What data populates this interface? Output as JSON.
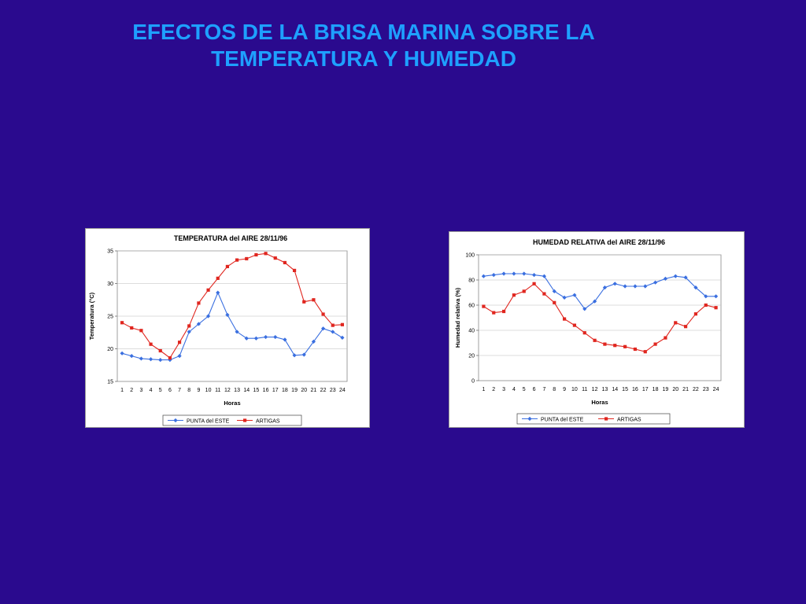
{
  "slide": {
    "title_line1": "EFECTOS DE LA BRISA MARINA SOBRE LA",
    "title_line2": "TEMPERATURA Y HUMEDAD"
  },
  "colors": {
    "background": "#2a0a8e",
    "title": "#1ea0ff",
    "series_punta": "#3a6fe0",
    "series_artigas": "#e0261f"
  },
  "chart_data": [
    {
      "type": "line",
      "title": "TEMPERATURA del AIRE   28/11/96",
      "xlabel": "Horas",
      "ylabel": "Temperatura (°C)",
      "x": [
        1,
        2,
        3,
        4,
        5,
        6,
        7,
        8,
        9,
        10,
        11,
        12,
        13,
        14,
        15,
        16,
        17,
        18,
        19,
        20,
        21,
        22,
        23,
        24
      ],
      "ylim": [
        15,
        35
      ],
      "yticks": [
        15,
        20,
        25,
        30,
        35
      ],
      "legend_position": "bottom",
      "series": [
        {
          "name": "PUNTA del ESTE",
          "marker": "diamond",
          "color": "#3a6fe0",
          "values": [
            19.3,
            18.9,
            18.5,
            18.4,
            18.3,
            18.3,
            18.9,
            22.6,
            23.8,
            25.0,
            28.6,
            25.2,
            22.6,
            21.6,
            21.6,
            21.8,
            21.8,
            21.4,
            19.0,
            19.1,
            21.1,
            23.1,
            22.6,
            21.7
          ]
        },
        {
          "name": "ARTIGAS",
          "marker": "square",
          "color": "#e0261f",
          "values": [
            24.0,
            23.2,
            22.8,
            20.7,
            19.7,
            18.6,
            21.0,
            23.5,
            27.0,
            29.0,
            30.8,
            32.6,
            33.6,
            33.8,
            34.4,
            34.6,
            33.9,
            33.2,
            32.0,
            27.2,
            27.5,
            25.3,
            23.6,
            23.7
          ]
        }
      ]
    },
    {
      "type": "line",
      "title": "HUMEDAD RELATIVA del AIRE    28/11/96",
      "xlabel": "Horas",
      "ylabel": "Humedad relativa (%)",
      "x": [
        1,
        2,
        3,
        4,
        5,
        6,
        7,
        8,
        9,
        10,
        11,
        12,
        13,
        14,
        15,
        16,
        17,
        18,
        19,
        20,
        21,
        22,
        23,
        24
      ],
      "ylim": [
        0,
        100
      ],
      "yticks": [
        0,
        20,
        40,
        60,
        80,
        100
      ],
      "legend_position": "bottom",
      "series": [
        {
          "name": "PUNTA del ESTE",
          "marker": "diamond",
          "color": "#3a6fe0",
          "values": [
            83,
            84,
            85,
            85,
            85,
            84,
            83,
            71,
            66,
            68,
            57,
            63,
            74,
            77,
            75,
            75,
            75,
            78,
            81,
            83,
            82,
            74,
            67,
            67
          ]
        },
        {
          "name": "ARTIGAS",
          "marker": "square",
          "color": "#e0261f",
          "values": [
            59,
            54,
            55,
            68,
            71,
            77,
            69,
            62,
            49,
            44,
            38,
            32,
            29,
            28,
            27,
            25,
            23,
            29,
            34,
            46,
            43,
            53,
            60,
            58
          ]
        }
      ]
    }
  ]
}
